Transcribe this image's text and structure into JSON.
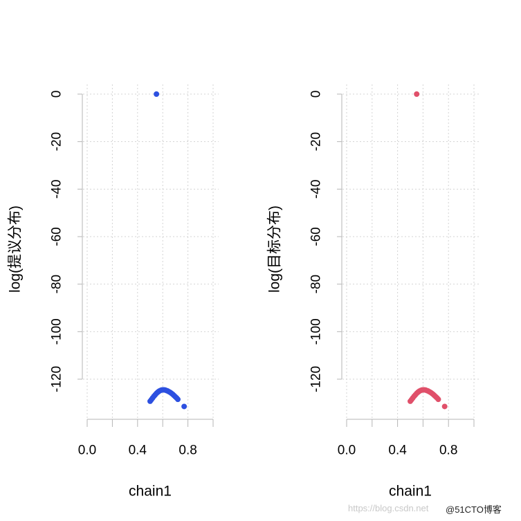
{
  "chart_data": [
    {
      "type": "scatter",
      "xlabel": "chain1",
      "ylabel": "log(提议分布)",
      "xlim": [
        0,
        1
      ],
      "ylim": [
        -137,
        4
      ],
      "x_ticks": [
        0.0,
        0.4,
        0.8
      ],
      "x_tick_labels": [
        "0.0",
        "0.4",
        "0.8"
      ],
      "y_ticks": [
        0,
        -20,
        -40,
        -60,
        -80,
        -100,
        -120
      ],
      "y_tick_labels": [
        "0",
        "-20",
        "-40",
        "-60",
        "-80",
        "-100",
        "-120"
      ],
      "grid": true,
      "color": "#2d50e0",
      "points": [
        {
          "x": 0.55,
          "y": 0
        },
        {
          "x": 0.5,
          "y": -129.3
        },
        {
          "x": 0.51,
          "y": -128.6
        },
        {
          "x": 0.52,
          "y": -127.9
        },
        {
          "x": 0.53,
          "y": -127.2
        },
        {
          "x": 0.54,
          "y": -126.6
        },
        {
          "x": 0.55,
          "y": -126.0
        },
        {
          "x": 0.56,
          "y": -125.5
        },
        {
          "x": 0.57,
          "y": -125.1
        },
        {
          "x": 0.58,
          "y": -124.8
        },
        {
          "x": 0.59,
          "y": -124.6
        },
        {
          "x": 0.6,
          "y": -124.5
        },
        {
          "x": 0.61,
          "y": -124.5
        },
        {
          "x": 0.62,
          "y": -124.6
        },
        {
          "x": 0.63,
          "y": -124.8
        },
        {
          "x": 0.64,
          "y": -125.0
        },
        {
          "x": 0.65,
          "y": -125.3
        },
        {
          "x": 0.66,
          "y": -125.6
        },
        {
          "x": 0.67,
          "y": -126.0
        },
        {
          "x": 0.68,
          "y": -126.4
        },
        {
          "x": 0.69,
          "y": -126.9
        },
        {
          "x": 0.7,
          "y": -127.4
        },
        {
          "x": 0.71,
          "y": -127.9
        },
        {
          "x": 0.72,
          "y": -128.5
        },
        {
          "x": 0.77,
          "y": -131.5
        }
      ]
    },
    {
      "type": "scatter",
      "xlabel": "chain1",
      "ylabel": "log(目标分布)",
      "xlim": [
        0,
        1
      ],
      "ylim": [
        -137,
        4
      ],
      "x_ticks": [
        0.0,
        0.4,
        0.8
      ],
      "x_tick_labels": [
        "0.0",
        "0.4",
        "0.8"
      ],
      "y_ticks": [
        0,
        -20,
        -40,
        -60,
        -80,
        -100,
        -120
      ],
      "y_tick_labels": [
        "0",
        "-20",
        "-40",
        "-60",
        "-80",
        "-100",
        "-120"
      ],
      "grid": true,
      "color": "#e0506a",
      "points": [
        {
          "x": 0.55,
          "y": 0
        },
        {
          "x": 0.5,
          "y": -129.3
        },
        {
          "x": 0.51,
          "y": -128.6
        },
        {
          "x": 0.52,
          "y": -127.9
        },
        {
          "x": 0.53,
          "y": -127.2
        },
        {
          "x": 0.54,
          "y": -126.6
        },
        {
          "x": 0.55,
          "y": -126.0
        },
        {
          "x": 0.56,
          "y": -125.5
        },
        {
          "x": 0.57,
          "y": -125.1
        },
        {
          "x": 0.58,
          "y": -124.8
        },
        {
          "x": 0.59,
          "y": -124.6
        },
        {
          "x": 0.6,
          "y": -124.5
        },
        {
          "x": 0.61,
          "y": -124.5
        },
        {
          "x": 0.62,
          "y": -124.6
        },
        {
          "x": 0.63,
          "y": -124.8
        },
        {
          "x": 0.64,
          "y": -125.0
        },
        {
          "x": 0.65,
          "y": -125.3
        },
        {
          "x": 0.66,
          "y": -125.6
        },
        {
          "x": 0.67,
          "y": -126.0
        },
        {
          "x": 0.68,
          "y": -126.4
        },
        {
          "x": 0.69,
          "y": -126.9
        },
        {
          "x": 0.7,
          "y": -127.4
        },
        {
          "x": 0.71,
          "y": -127.9
        },
        {
          "x": 0.72,
          "y": -128.5
        },
        {
          "x": 0.77,
          "y": -131.5
        }
      ]
    }
  ],
  "watermark": {
    "url_text": "https://blog.csdn.net",
    "brand_text": "@51CTO博客"
  }
}
